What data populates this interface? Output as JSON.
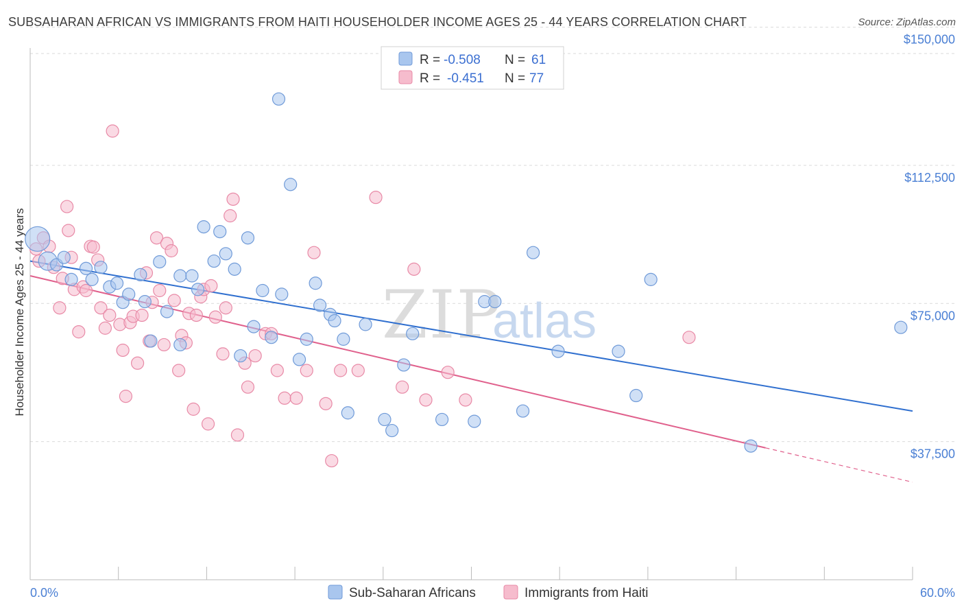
{
  "title": "SUBSAHARAN AFRICAN VS IMMIGRANTS FROM HAITI HOUSEHOLDER INCOME AGES 25 - 44 YEARS CORRELATION CHART",
  "source": "Source: ZipAtlas.com",
  "watermark": {
    "zip": "ZIP",
    "atlas": "atlas"
  },
  "colors": {
    "blue_fill": "#a9c6ee",
    "blue_stroke": "#6f9ad8",
    "blue_line": "#2f6fcf",
    "pink_fill": "#f6bccd",
    "pink_stroke": "#e889a6",
    "pink_line": "#e0608c",
    "grid": "#d9d9d9",
    "axis_label": "#4a7fd4"
  },
  "legend": {
    "rows": [
      {
        "r_label": "R =",
        "r_value": "-0.508",
        "n_label": "N =",
        "n_value": "61"
      },
      {
        "r_label": "R =",
        "r_value": "-0.451",
        "n_label": "N =",
        "n_value": "77"
      }
    ]
  },
  "bottom_legend": [
    "Sub-Saharan Africans",
    "Immigrants from Haiti"
  ],
  "chart_data": {
    "type": "scatter",
    "title": "SUBSAHARAN AFRICAN VS IMMIGRANTS FROM HAITI HOUSEHOLDER INCOME AGES 25 - 44 YEARS CORRELATION CHART",
    "xlabel": "",
    "ylabel": "Householder Income Ages 25 - 44 years",
    "xlim": [
      0,
      60
    ],
    "ylim": [
      0,
      157000
    ],
    "x_tick_labels": [
      "0.0%",
      "60.0%"
    ],
    "y_ticks": [
      37500,
      75000,
      112500,
      150000
    ],
    "y_tick_labels": [
      "$37,500",
      "$75,000",
      "$112,500",
      "$150,000"
    ],
    "grid": true,
    "legend_position": "top-center",
    "series": [
      {
        "name": "Sub-Saharan Africans",
        "r": -0.508,
        "n": 61,
        "trend": {
          "x": [
            0,
            60
          ],
          "y": [
            86500,
            45800
          ]
        },
        "points": [
          [
            0.5,
            92500,
            2
          ],
          [
            1.2,
            86500,
            1.5
          ],
          [
            1.8,
            85500,
            1
          ],
          [
            2.3,
            87500,
            1
          ],
          [
            2.8,
            81500,
            1
          ],
          [
            3.8,
            84500,
            1
          ],
          [
            4.2,
            81500,
            1
          ],
          [
            4.8,
            84800,
            1
          ],
          [
            5.4,
            79500,
            1
          ],
          [
            5.9,
            80500,
            1
          ],
          [
            6.3,
            75300,
            1
          ],
          [
            6.7,
            77500,
            1
          ],
          [
            7.5,
            82800,
            1
          ],
          [
            7.8,
            75500,
            1
          ],
          [
            8.2,
            64800,
            1
          ],
          [
            8.8,
            86300,
            1
          ],
          [
            9.3,
            72800,
            1
          ],
          [
            10.2,
            82500,
            1
          ],
          [
            10.2,
            63800,
            1
          ],
          [
            11.0,
            82500,
            1
          ],
          [
            11.4,
            78800,
            1
          ],
          [
            11.8,
            95800,
            1
          ],
          [
            12.5,
            86500,
            1
          ],
          [
            12.9,
            94500,
            1
          ],
          [
            13.3,
            88500,
            1
          ],
          [
            13.9,
            84300,
            1
          ],
          [
            14.3,
            60800,
            1
          ],
          [
            14.8,
            92800,
            1
          ],
          [
            15.2,
            68700,
            1
          ],
          [
            15.8,
            78500,
            1
          ],
          [
            16.4,
            65800,
            1
          ],
          [
            16.9,
            130500,
            1
          ],
          [
            17.1,
            77500,
            1
          ],
          [
            17.7,
            107300,
            1
          ],
          [
            18.3,
            59800,
            1
          ],
          [
            18.8,
            65300,
            1
          ],
          [
            19.4,
            80500,
            1
          ],
          [
            19.7,
            74500,
            1
          ],
          [
            20.4,
            72000,
            1
          ],
          [
            20.7,
            70300,
            1
          ],
          [
            21.3,
            65300,
            1
          ],
          [
            21.6,
            45300,
            1
          ],
          [
            22.8,
            69300,
            1
          ],
          [
            24.1,
            43500,
            1
          ],
          [
            24.6,
            40500,
            1
          ],
          [
            25.4,
            58300,
            1
          ],
          [
            26.0,
            66800,
            1
          ],
          [
            28.0,
            43500,
            1
          ],
          [
            30.2,
            43000,
            1
          ],
          [
            30.9,
            75500,
            1
          ],
          [
            31.6,
            75500,
            1
          ],
          [
            33.5,
            45800,
            1
          ],
          [
            34.2,
            88800,
            1
          ],
          [
            35.9,
            62000,
            1
          ],
          [
            40.0,
            62000,
            1
          ],
          [
            41.2,
            50000,
            1
          ],
          [
            42.2,
            81500,
            1
          ],
          [
            49.0,
            36300,
            1
          ],
          [
            59.2,
            68500,
            1
          ]
        ]
      },
      {
        "name": "Immigrants from Haiti",
        "r": -0.451,
        "n": 77,
        "trend": {
          "x": [
            0,
            50
          ],
          "y": [
            82500,
            35800
          ]
        },
        "trend_dashed": {
          "x": [
            50,
            60
          ],
          "y": [
            35800,
            26500
          ]
        },
        "points": [
          [
            0.4,
            89800,
            1
          ],
          [
            0.6,
            86500,
            1
          ],
          [
            0.9,
            92800,
            1
          ],
          [
            1.3,
            90500,
            1
          ],
          [
            1.6,
            84800,
            1
          ],
          [
            2.0,
            73800,
            1
          ],
          [
            2.2,
            81800,
            1
          ],
          [
            2.5,
            101300,
            1
          ],
          [
            2.6,
            94800,
            1
          ],
          [
            2.8,
            87500,
            1
          ],
          [
            3.0,
            78800,
            1
          ],
          [
            3.3,
            67300,
            1
          ],
          [
            3.6,
            79500,
            1
          ],
          [
            3.8,
            78500,
            1
          ],
          [
            4.1,
            90500,
            1
          ],
          [
            4.3,
            90300,
            1
          ],
          [
            4.6,
            86800,
            1
          ],
          [
            4.8,
            73800,
            1
          ],
          [
            5.1,
            68300,
            1
          ],
          [
            5.4,
            71800,
            1
          ],
          [
            5.6,
            121800,
            1
          ],
          [
            6.1,
            69300,
            1
          ],
          [
            6.3,
            62300,
            1
          ],
          [
            6.5,
            49800,
            1
          ],
          [
            6.8,
            69800,
            1
          ],
          [
            7.0,
            71500,
            1
          ],
          [
            7.3,
            58800,
            1
          ],
          [
            7.6,
            71800,
            1
          ],
          [
            7.9,
            83300,
            1
          ],
          [
            8.1,
            64800,
            1
          ],
          [
            8.3,
            75300,
            1
          ],
          [
            8.6,
            92800,
            1
          ],
          [
            8.8,
            78500,
            1
          ],
          [
            9.1,
            63800,
            1
          ],
          [
            9.3,
            91300,
            1
          ],
          [
            9.6,
            89300,
            1
          ],
          [
            9.8,
            75800,
            1
          ],
          [
            10.1,
            56800,
            1
          ],
          [
            10.3,
            66300,
            1
          ],
          [
            10.6,
            64300,
            1
          ],
          [
            10.8,
            72300,
            1
          ],
          [
            11.1,
            46300,
            1
          ],
          [
            11.3,
            71800,
            1
          ],
          [
            11.6,
            76800,
            1
          ],
          [
            11.8,
            78800,
            1
          ],
          [
            12.1,
            42300,
            1
          ],
          [
            12.3,
            79800,
            1
          ],
          [
            12.6,
            71300,
            1
          ],
          [
            13.1,
            61300,
            1
          ],
          [
            13.3,
            73800,
            1
          ],
          [
            13.6,
            98800,
            1
          ],
          [
            13.8,
            103300,
            1
          ],
          [
            14.1,
            39300,
            1
          ],
          [
            14.6,
            58800,
            1
          ],
          [
            14.8,
            52300,
            1
          ],
          [
            15.3,
            60800,
            1
          ],
          [
            16.0,
            66800,
            1
          ],
          [
            16.4,
            66800,
            1
          ],
          [
            16.8,
            56800,
            1
          ],
          [
            17.3,
            49300,
            1
          ],
          [
            18.1,
            49300,
            1
          ],
          [
            18.8,
            56800,
            1
          ],
          [
            19.3,
            88800,
            1
          ],
          [
            20.1,
            47800,
            1
          ],
          [
            20.5,
            32300,
            1
          ],
          [
            21.1,
            56800,
            1
          ],
          [
            22.3,
            56800,
            1
          ],
          [
            23.5,
            103800,
            1
          ],
          [
            25.3,
            52300,
            1
          ],
          [
            26.1,
            84300,
            1
          ],
          [
            26.9,
            48800,
            1
          ],
          [
            28.4,
            56300,
            1
          ],
          [
            29.6,
            48800,
            1
          ],
          [
            44.8,
            65800,
            1
          ]
        ]
      }
    ]
  }
}
